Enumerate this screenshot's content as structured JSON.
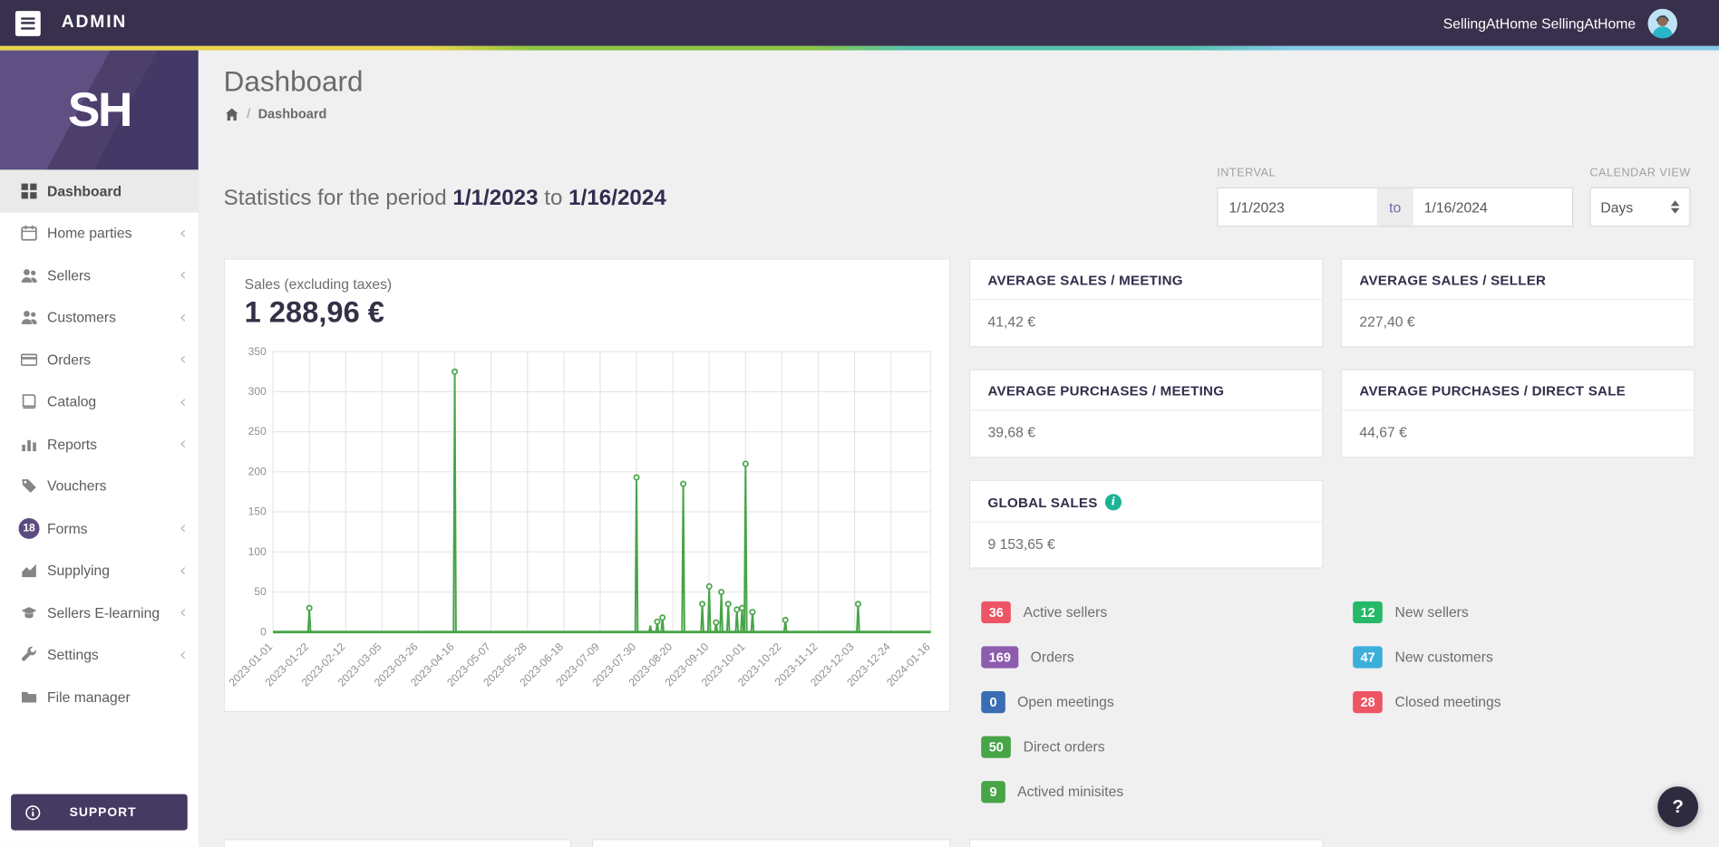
{
  "topbar": {
    "brand": "ADMIN",
    "user_name": "SellingAtHome SellingAtHome"
  },
  "sidebar": {
    "logo_text": "SH",
    "items": [
      {
        "label": "Dashboard",
        "icon": "grid",
        "active": true,
        "chevron": false
      },
      {
        "label": "Home parties",
        "icon": "calendar",
        "active": false,
        "chevron": true
      },
      {
        "label": "Sellers",
        "icon": "users",
        "active": false,
        "chevron": true
      },
      {
        "label": "Customers",
        "icon": "users",
        "active": false,
        "chevron": true
      },
      {
        "label": "Orders",
        "icon": "card",
        "active": false,
        "chevron": true
      },
      {
        "label": "Catalog",
        "icon": "book",
        "active": false,
        "chevron": true
      },
      {
        "label": "Reports",
        "icon": "bars",
        "active": false,
        "chevron": true
      },
      {
        "label": "Vouchers",
        "icon": "tag",
        "active": false,
        "chevron": false
      },
      {
        "label": "Forms",
        "icon": "badge",
        "badge": "18",
        "badge_color": "#5c4b80",
        "active": false,
        "chevron": true
      },
      {
        "label": "Supplying",
        "icon": "area",
        "active": false,
        "chevron": true
      },
      {
        "label": "Sellers E-learning",
        "icon": "grad",
        "active": false,
        "chevron": true
      },
      {
        "label": "Settings",
        "icon": "wrench",
        "active": false,
        "chevron": true
      },
      {
        "label": "File manager",
        "icon": "folder",
        "active": false,
        "chevron": false
      }
    ],
    "support_label": "SUPPORT"
  },
  "page": {
    "title": "Dashboard",
    "breadcrumb_current": "Dashboard",
    "breadcrumb_separator": "/"
  },
  "stats_heading": {
    "prefix": "Statistics for the period",
    "date_from": "1/1/2023",
    "joiner": "to",
    "date_to": "1/16/2024"
  },
  "filters": {
    "interval_label": "INTERVAL",
    "date_from": "1/1/2023",
    "joiner": "to",
    "date_to": "1/16/2024",
    "calendar_view_label": "CALENDAR VIEW",
    "calendar_view_value": "Days"
  },
  "chart_data": {
    "type": "line",
    "title": "Sales (excluding taxes)",
    "total": "1 288,96 €",
    "color": "#47a447",
    "ylim": [
      0,
      350
    ],
    "ytick_step": 50,
    "x_axis_days": 380,
    "grid": true,
    "legend": "none",
    "xticks": [
      {
        "day": 0,
        "label": "2023-01-01"
      },
      {
        "day": 21,
        "label": "2023-01-22"
      },
      {
        "day": 42,
        "label": "2023-02-12"
      },
      {
        "day": 63,
        "label": "2023-03-05"
      },
      {
        "day": 84,
        "label": "2023-03-26"
      },
      {
        "day": 105,
        "label": "2023-04-16"
      },
      {
        "day": 126,
        "label": "2023-05-07"
      },
      {
        "day": 147,
        "label": "2023-05-28"
      },
      {
        "day": 168,
        "label": "2023-06-18"
      },
      {
        "day": 189,
        "label": "2023-07-09"
      },
      {
        "day": 210,
        "label": "2023-07-30"
      },
      {
        "day": 231,
        "label": "2023-08-20"
      },
      {
        "day": 252,
        "label": "2023-09-10"
      },
      {
        "day": 273,
        "label": "2023-10-01"
      },
      {
        "day": 294,
        "label": "2023-10-22"
      },
      {
        "day": 315,
        "label": "2023-11-12"
      },
      {
        "day": 336,
        "label": "2023-12-03"
      },
      {
        "day": 357,
        "label": "2023-12-24"
      },
      {
        "day": 380,
        "label": "2024-01-16"
      }
    ],
    "points_day_value": [
      [
        21,
        30
      ],
      [
        105,
        325
      ],
      [
        210,
        193
      ],
      [
        218,
        8
      ],
      [
        222,
        13
      ],
      [
        225,
        18
      ],
      [
        237,
        185
      ],
      [
        248,
        35
      ],
      [
        252,
        57
      ],
      [
        256,
        12
      ],
      [
        259,
        50
      ],
      [
        263,
        35
      ],
      [
        268,
        28
      ],
      [
        271,
        30
      ],
      [
        273,
        210
      ],
      [
        277,
        25
      ],
      [
        296,
        15
      ],
      [
        338,
        35
      ]
    ]
  },
  "kpi_cards": [
    {
      "title": "AVERAGE SALES / MEETING",
      "value": "41,42 €"
    },
    {
      "title": "AVERAGE SALES / SELLER",
      "value": "227,40 €"
    },
    {
      "title": "AVERAGE PURCHASES / MEETING",
      "value": "39,68 €"
    },
    {
      "title": "AVERAGE PURCHASES / DIRECT SALE",
      "value": "44,67 €"
    },
    {
      "title": "GLOBAL SALES",
      "value": "9 153,65 €",
      "info_icon": true,
      "info_color": "#1ab394"
    }
  ],
  "counters": {
    "left": [
      {
        "value": "36",
        "label": "Active sellers",
        "color": "#ed5565"
      },
      {
        "value": "169",
        "label": "Orders",
        "color": "#8e5cae"
      },
      {
        "value": "0",
        "label": "Open meetings",
        "color": "#3a6db3"
      },
      {
        "value": "50",
        "label": "Direct orders",
        "color": "#47a447"
      },
      {
        "value": "9",
        "label": "Actived minisites",
        "color": "#47a447"
      }
    ],
    "right": [
      {
        "value": "12",
        "label": "New sellers",
        "color": "#26b968"
      },
      {
        "value": "47",
        "label": "New customers",
        "color": "#3bafda"
      },
      {
        "value": "28",
        "label": "Closed meetings",
        "color": "#ed5565"
      }
    ]
  },
  "help_label": "?"
}
